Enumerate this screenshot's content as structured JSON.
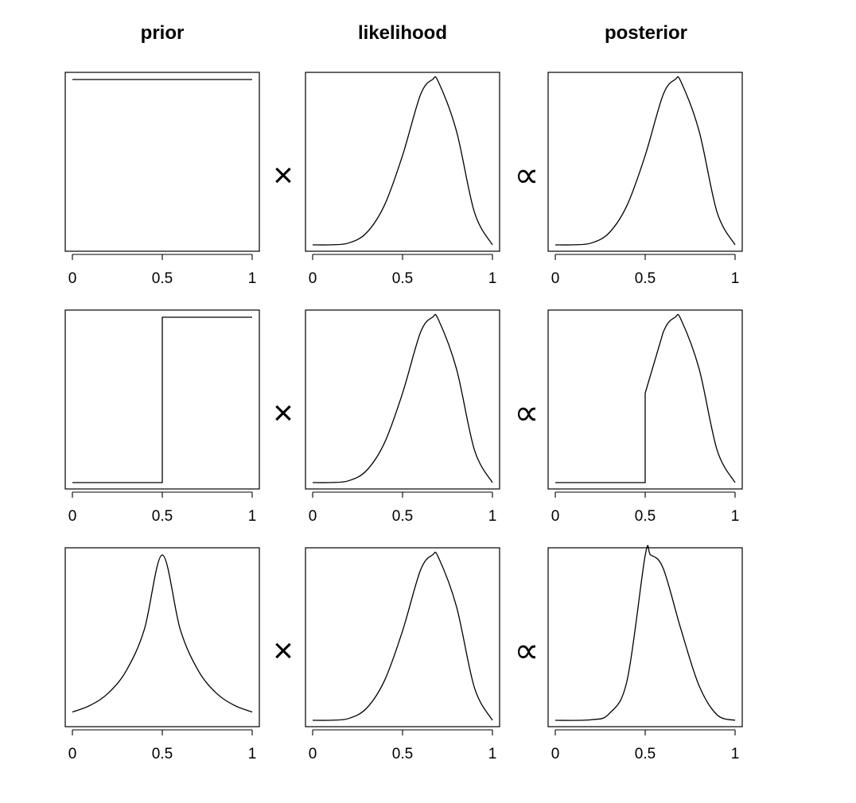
{
  "figure": {
    "column_titles": [
      "prior",
      "likelihood",
      "posterior"
    ],
    "operators": [
      "×",
      "∝"
    ]
  },
  "chart_data": [
    {
      "type": "line",
      "row": 1,
      "panel": "prior",
      "title": "prior",
      "xlim": [
        0,
        1
      ],
      "x_ticks": [
        0,
        0.5,
        1
      ],
      "x_tick_labels": [
        "0",
        "0.5",
        "1"
      ],
      "y_axis_shown": false,
      "grid": false,
      "distribution": "uniform(0, 1)",
      "x": [
        0,
        0.25,
        0.5,
        0.75,
        1
      ],
      "y": [
        1,
        1,
        1,
        1,
        1
      ]
    },
    {
      "type": "line",
      "row": 1,
      "panel": "likelihood",
      "title": "likelihood",
      "xlim": [
        0,
        1
      ],
      "x_ticks": [
        0,
        0.5,
        1
      ],
      "x_tick_labels": [
        "0",
        "0.5",
        "1"
      ],
      "y_axis_shown": false,
      "grid": false,
      "shape": "theta^6 (1 - theta)^3",
      "x": [
        0,
        0.1,
        0.2,
        0.3,
        0.4,
        0.5,
        0.6,
        0.667,
        0.7,
        0.8,
        0.9,
        1
      ],
      "y": [
        0,
        0.0003,
        0.0065,
        0.0429,
        0.1413,
        0.3165,
        0.5317,
        0.5853,
        0.5762,
        0.4026,
        0.1151,
        0
      ]
    },
    {
      "type": "line",
      "row": 1,
      "panel": "posterior",
      "title": "posterior",
      "xlim": [
        0,
        1
      ],
      "x_ticks": [
        0,
        0.5,
        1
      ],
      "x_tick_labels": [
        "0",
        "0.5",
        "1"
      ],
      "y_axis_shown": false,
      "grid": false,
      "x": [
        0,
        0.1,
        0.2,
        0.3,
        0.4,
        0.5,
        0.6,
        0.667,
        0.7,
        0.8,
        0.9,
        1
      ],
      "y": [
        0,
        0.0003,
        0.0065,
        0.0429,
        0.1413,
        0.3165,
        0.5317,
        0.5853,
        0.5762,
        0.4026,
        0.1151,
        0
      ]
    },
    {
      "type": "line",
      "row": 2,
      "panel": "prior",
      "title": "prior",
      "xlim": [
        0,
        1
      ],
      "x_ticks": [
        0,
        0.5,
        1
      ],
      "x_tick_labels": [
        "0",
        "0.5",
        "1"
      ],
      "y_axis_shown": false,
      "grid": false,
      "distribution": "step: 0 below 0.5, 1 above 0.5",
      "x": [
        0,
        0.5,
        0.5,
        1
      ],
      "y": [
        0,
        0,
        1,
        1
      ]
    },
    {
      "type": "line",
      "row": 2,
      "panel": "likelihood",
      "title": "likelihood",
      "xlim": [
        0,
        1
      ],
      "x_ticks": [
        0,
        0.5,
        1
      ],
      "x_tick_labels": [
        "0",
        "0.5",
        "1"
      ],
      "y_axis_shown": false,
      "grid": false,
      "shape": "theta^6 (1 - theta)^3",
      "x": [
        0,
        0.1,
        0.2,
        0.3,
        0.4,
        0.5,
        0.6,
        0.667,
        0.7,
        0.8,
        0.9,
        1
      ],
      "y": [
        0,
        0.0003,
        0.0065,
        0.0429,
        0.1413,
        0.3165,
        0.5317,
        0.5853,
        0.5762,
        0.4026,
        0.1151,
        0
      ]
    },
    {
      "type": "line",
      "row": 2,
      "panel": "posterior",
      "title": "posterior",
      "xlim": [
        0,
        1
      ],
      "x_ticks": [
        0,
        0.5,
        1
      ],
      "x_tick_labels": [
        "0",
        "0.5",
        "1"
      ],
      "y_axis_shown": false,
      "grid": false,
      "x": [
        0,
        0.5,
        0.5,
        0.6,
        0.667,
        0.7,
        0.8,
        0.9,
        1
      ],
      "y": [
        0,
        0,
        0.3165,
        0.5317,
        0.5853,
        0.5762,
        0.4026,
        0.1151,
        0
      ]
    },
    {
      "type": "line",
      "row": 3,
      "panel": "prior",
      "title": "prior",
      "xlim": [
        0,
        1
      ],
      "x_ticks": [
        0,
        0.5,
        1
      ],
      "x_tick_labels": [
        "0",
        "0.5",
        "1"
      ],
      "y_axis_shown": false,
      "grid": false,
      "distribution": "peaked at 0.5, exp(-6 |theta - 0.5|)",
      "x": [
        0,
        0.1,
        0.2,
        0.3,
        0.4,
        0.5,
        0.6,
        0.7,
        0.8,
        0.9,
        1
      ],
      "y": [
        0.05,
        0.091,
        0.165,
        0.301,
        0.549,
        1,
        0.549,
        0.301,
        0.165,
        0.091,
        0.05
      ]
    },
    {
      "type": "line",
      "row": 3,
      "panel": "likelihood",
      "title": "likelihood",
      "xlim": [
        0,
        1
      ],
      "x_ticks": [
        0,
        0.5,
        1
      ],
      "x_tick_labels": [
        "0",
        "0.5",
        "1"
      ],
      "y_axis_shown": false,
      "grid": false,
      "shape": "theta^6 (1 - theta)^3",
      "x": [
        0,
        0.1,
        0.2,
        0.3,
        0.4,
        0.5,
        0.6,
        0.667,
        0.7,
        0.8,
        0.9,
        1
      ],
      "y": [
        0,
        0.0003,
        0.0065,
        0.0429,
        0.1413,
        0.3165,
        0.5317,
        0.5853,
        0.5762,
        0.4026,
        0.1151,
        0
      ]
    },
    {
      "type": "line",
      "row": 3,
      "panel": "posterior",
      "title": "posterior",
      "xlim": [
        0,
        1
      ],
      "x_ticks": [
        0,
        0.5,
        1
      ],
      "x_tick_labels": [
        "0",
        "0.5",
        "1"
      ],
      "y_axis_shown": false,
      "grid": false,
      "x": [
        0,
        0.2,
        0.3,
        0.4,
        0.5,
        0.53,
        0.6,
        0.7,
        0.8,
        0.9,
        1
      ],
      "y": [
        0,
        0.0011,
        0.0129,
        0.0775,
        0.3165,
        0.3174,
        0.2918,
        0.1734,
        0.0663,
        0.0105,
        0
      ]
    }
  ]
}
